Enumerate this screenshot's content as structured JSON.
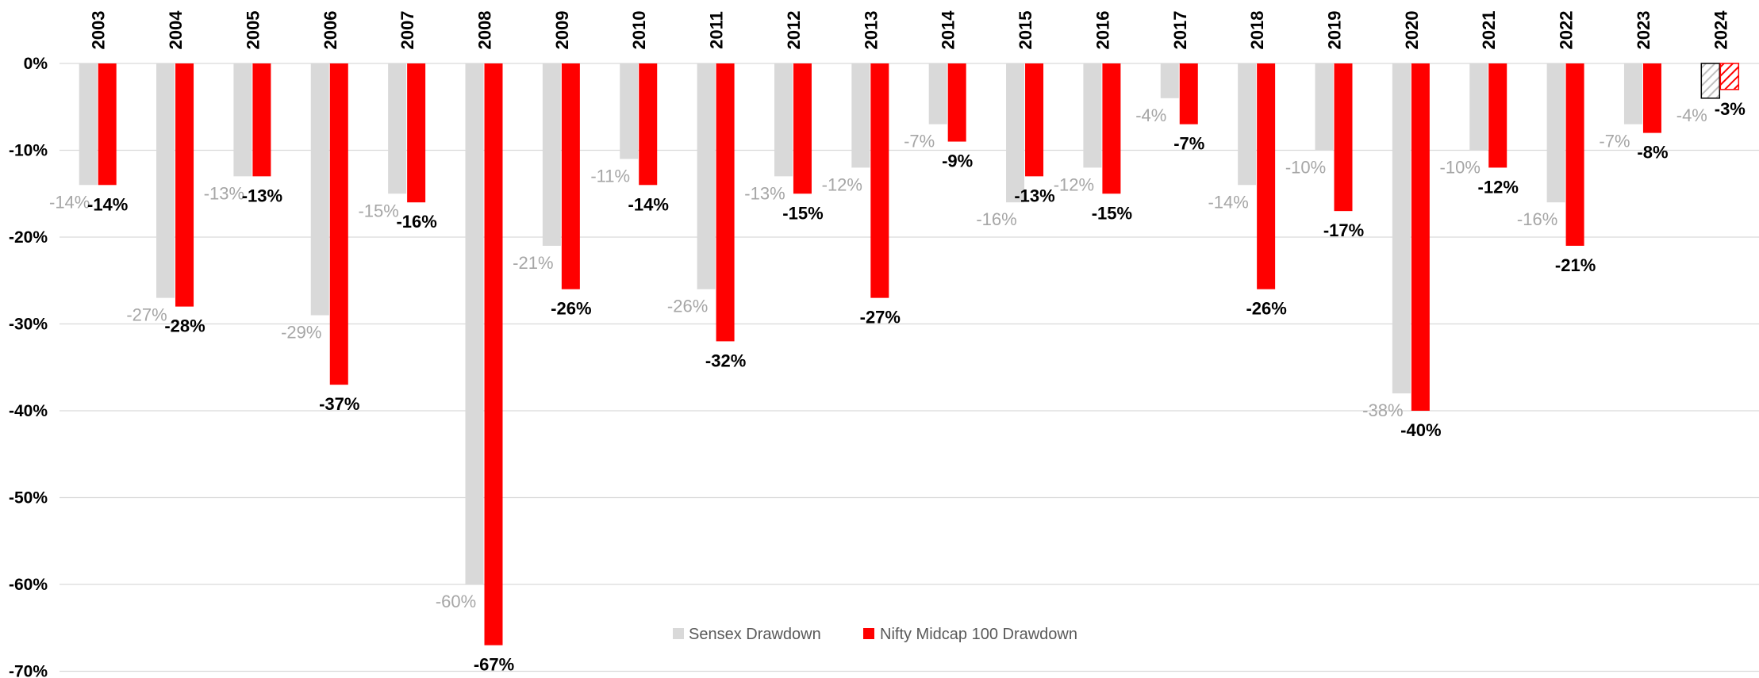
{
  "chart_data": {
    "type": "bar",
    "categories": [
      "2003",
      "2004",
      "2005",
      "2006",
      "2007",
      "2008",
      "2009",
      "2010",
      "2011",
      "2012",
      "2013",
      "2014",
      "2015",
      "2016",
      "2017",
      "2018",
      "2019",
      "2020",
      "2021",
      "2022",
      "2023",
      "2024"
    ],
    "series": [
      {
        "name": "Sensex Drawdown",
        "color": "#d9d9d9",
        "values": [
          -14,
          -27,
          -13,
          -29,
          -15,
          -60,
          -21,
          -11,
          -26,
          -13,
          -12,
          -7,
          -16,
          -12,
          -4,
          -14,
          -10,
          -38,
          -10,
          -16,
          -7,
          -4
        ],
        "labels": [
          "-14%",
          "-27%",
          "-13%",
          "-29%",
          "-15%",
          "-60%",
          "-21%",
          "-11%",
          "-26%",
          "-13%",
          "-12%",
          "-7%",
          "-16%",
          "-12%",
          "-4%",
          "-14%",
          "-10%",
          "-38%",
          "-10%",
          "-16%",
          "-7%",
          "-4%"
        ]
      },
      {
        "name": "Nifty Midcap 100 Drawdown",
        "color": "#ff0000",
        "values": [
          -14,
          -28,
          -13,
          -37,
          -16,
          -67,
          -26,
          -14,
          -32,
          -15,
          -27,
          -9,
          -13,
          -15,
          -7,
          -26,
          -17,
          -40,
          -12,
          -21,
          -8,
          -3
        ],
        "labels": [
          "-14%",
          "-28%",
          "-13%",
          "-37%",
          "-16%",
          "-67%",
          "-26%",
          "-14%",
          "-32%",
          "-15%",
          "-27%",
          "-9%",
          "-13%",
          "-15%",
          "-7%",
          "-26%",
          "-17%",
          "-40%",
          "-12%",
          "-21%",
          "-8%",
          "-3%"
        ]
      }
    ],
    "y_ticks": [
      "0%",
      "-10%",
      "-20%",
      "-30%",
      "-40%",
      "-50%",
      "-60%",
      "-70%"
    ],
    "ylim": [
      -70,
      0
    ],
    "x_axis_position": "top",
    "grid": true,
    "legend_position": "bottom-center",
    "highlighted_category": "2024",
    "highlight_style": "hatched"
  }
}
